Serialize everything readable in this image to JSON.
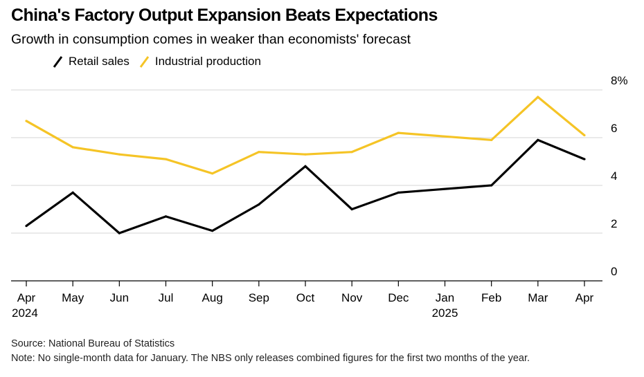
{
  "chart_data": {
    "type": "line",
    "title": "China's Factory Output Expansion Beats Expectations",
    "subtitle": "Growth in consumption comes in weaker than economists' forecast",
    "categories": [
      "Apr",
      "May",
      "Jun",
      "Jul",
      "Aug",
      "Sep",
      "Oct",
      "Nov",
      "Dec",
      "Jan",
      "Feb",
      "Mar",
      "Apr"
    ],
    "year_labels": [
      {
        "category_index": 0,
        "label": "2024"
      },
      {
        "category_index": 9,
        "label": "2025"
      }
    ],
    "series": [
      {
        "name": "Retail sales",
        "color": "#000000",
        "values": [
          2.3,
          3.7,
          2.0,
          2.7,
          2.1,
          3.2,
          4.8,
          3.0,
          3.7,
          null,
          4.0,
          5.9,
          5.1
        ]
      },
      {
        "name": "Industrial production",
        "color": "#f5c426",
        "values": [
          6.7,
          5.6,
          5.3,
          5.1,
          4.5,
          5.4,
          5.3,
          5.4,
          6.2,
          null,
          5.9,
          7.7,
          6.1
        ]
      }
    ],
    "y_ticks": [
      {
        "value": 0,
        "label": "0"
      },
      {
        "value": 2,
        "label": "2"
      },
      {
        "value": 4,
        "label": "4"
      },
      {
        "value": 6,
        "label": "6"
      },
      {
        "value": 8,
        "label": "8%"
      }
    ],
    "ylim": [
      0,
      8
    ],
    "grid": true,
    "legend_position": "top-left",
    "xlabel": "",
    "ylabel": ""
  },
  "footer": {
    "source": "Source: National Bureau of Statistics",
    "note": "Note: No single-month data for January. The NBS only releases combined figures for the first two months of the year."
  }
}
